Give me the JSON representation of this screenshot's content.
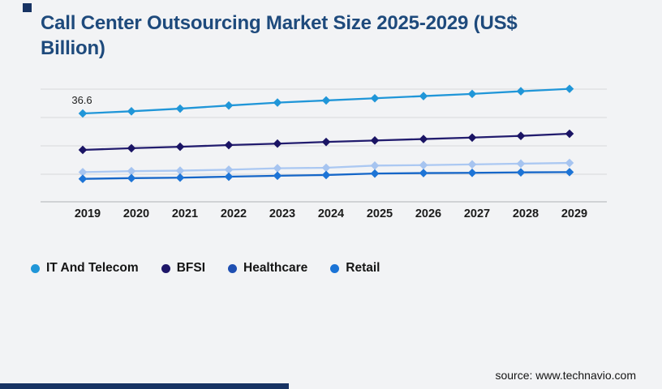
{
  "page": {
    "background_color": "#f2f3f5",
    "accent_bar_color": "#173363"
  },
  "title": {
    "line1": "Call Center Outsourcing Market Size 2025-2029 (US$",
    "line2": "Billion)",
    "color": "#1e4a7c"
  },
  "source": {
    "text": "source: www.technavio.com"
  },
  "chart_data": {
    "type": "line",
    "title": "Call Center Outsourcing Market Size 2025-2029 (US$ Billion)",
    "x": [
      2019,
      2020,
      2021,
      2022,
      2023,
      2024,
      2025,
      2026,
      2027,
      2028,
      2029
    ],
    "xlabel": "",
    "ylabel": "",
    "ylim": [
      0,
      50
    ],
    "grid": true,
    "y_axis_labels_visible": false,
    "marker_shape": "diamond",
    "legend_position": "bottom-left",
    "annotation": {
      "text": "36.6",
      "series": "IT And Telecom",
      "x": 2019,
      "value": 36.6
    },
    "series": [
      {
        "name": "IT And Telecom",
        "line_color": "#2096d8",
        "marker_color": "#2096d8",
        "legend_color": "#2096d8",
        "values": [
          36.6,
          37.5,
          38.6,
          39.9,
          41.1,
          42.0,
          42.9,
          43.8,
          44.7,
          45.8,
          46.8
        ]
      },
      {
        "name": "BFSI",
        "line_color": "#221c6e",
        "marker_color": "#1a1464",
        "legend_color": "#1d1668",
        "values": [
          21.5,
          22.2,
          22.8,
          23.5,
          24.1,
          24.8,
          25.4,
          26.0,
          26.6,
          27.3,
          28.2
        ]
      },
      {
        "name": "Healthcare",
        "line_color": "#abc8f2",
        "marker_color": "#a6c4f0",
        "legend_color": "#1f4fb2",
        "values": [
          12.3,
          12.7,
          12.9,
          13.3,
          13.9,
          14.1,
          15.0,
          15.2,
          15.5,
          15.8,
          16.1
        ]
      },
      {
        "name": "Retail",
        "line_color": "#1566c8",
        "marker_color": "#1d74d6",
        "legend_color": "#1a73d6",
        "values": [
          9.5,
          9.8,
          10.0,
          10.4,
          10.8,
          11.1,
          11.7,
          11.9,
          12.0,
          12.2,
          12.3
        ]
      }
    ]
  }
}
